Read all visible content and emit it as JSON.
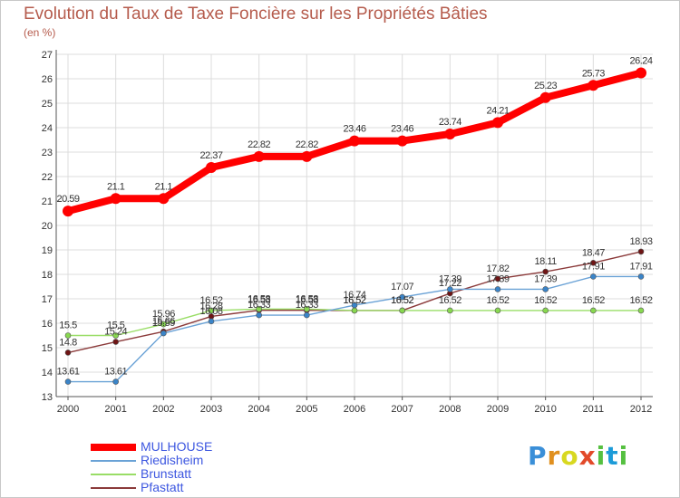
{
  "chart_data": {
    "type": "line",
    "title": "Evolution du Taux de Taxe Foncière sur les Propriétés Bâties",
    "ylabel": "(en %)",
    "xlabel": "",
    "ylim": [
      13,
      27
    ],
    "yticks": [
      "13",
      "14",
      "15",
      "16",
      "17",
      "18",
      "19",
      "20",
      "21",
      "22",
      "23",
      "24",
      "25",
      "26",
      "27"
    ],
    "categories": [
      "2000",
      "2001",
      "2002",
      "2003",
      "2004",
      "2005",
      "2006",
      "2007",
      "2008",
      "2009",
      "2010",
      "2011",
      "2012"
    ],
    "series": [
      {
        "name": "MULHOUSE",
        "color": "#ff0000",
        "values": [
          20.59,
          21.1,
          21.1,
          22.37,
          22.82,
          22.82,
          23.46,
          23.46,
          23.74,
          24.21,
          25.23,
          25.73,
          26.24
        ],
        "labels": [
          "20.59",
          "21.1",
          "21.1",
          "22.37",
          "22.82",
          "22.82",
          "23.46",
          "23.46",
          "23.74",
          "24.21",
          "25.23",
          "25.73",
          "26.24"
        ]
      },
      {
        "name": "Riedisheim",
        "color": "#6aa2d6",
        "marker": "#3a84c8",
        "values": [
          13.61,
          13.61,
          15.59,
          16.08,
          16.33,
          16.33,
          16.74,
          17.07,
          17.39,
          17.39,
          17.39,
          17.91,
          17.91
        ],
        "labels": [
          "13.61",
          "13.61",
          "15.59",
          "16.08",
          "16.33",
          "16.33",
          "16.74",
          "17.07",
          "17.39",
          "17.39",
          "17.39",
          "17.91",
          "17.91"
        ]
      },
      {
        "name": "Brunstatt",
        "color": "#99dd66",
        "marker": "#88d850",
        "values": [
          15.5,
          15.5,
          15.96,
          16.52,
          16.58,
          16.58,
          16.52,
          16.52,
          16.52,
          16.52,
          16.52,
          16.52,
          16.52
        ],
        "labels": [
          "15.5",
          "15.5",
          "15.96",
          "16.52",
          "16.58",
          "16.58",
          "16.52",
          "16.52",
          "16.52",
          "16.52",
          "16.52",
          "16.52",
          "16.52"
        ]
      },
      {
        "name": "Pfastatt",
        "color": "#8b3a3a",
        "marker": "#6e1414",
        "values": [
          14.8,
          15.24,
          15.66,
          16.28,
          16.53,
          16.53,
          16.52,
          16.52,
          17.22,
          17.82,
          18.11,
          18.47,
          18.93
        ],
        "labels": [
          "14.8",
          "15.24",
          "15.66",
          "16.28",
          "16.53",
          "16.53",
          "16.52",
          "16.52",
          "17.22",
          "17.82",
          "18.11",
          "18.47",
          "18.93"
        ]
      }
    ]
  },
  "logo": {
    "letters": [
      "P",
      "r",
      "o",
      "x",
      "i",
      "t",
      "i"
    ]
  }
}
